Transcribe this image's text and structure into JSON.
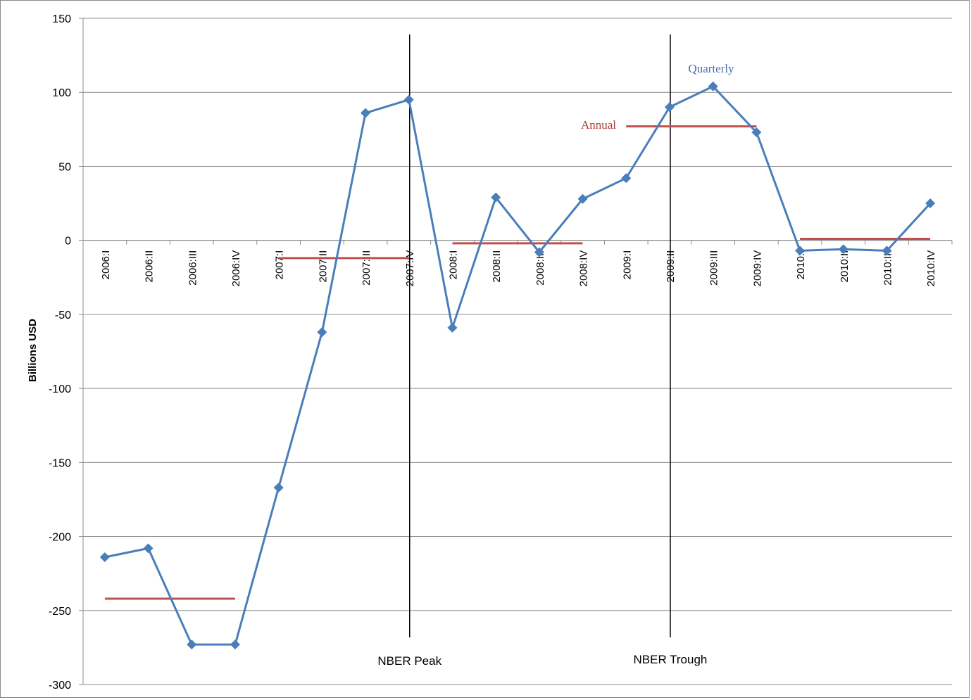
{
  "chart_data": {
    "type": "line",
    "title": "",
    "xlabel": "",
    "ylabel": "Billions USD",
    "ylim": [
      -300,
      150
    ],
    "y_ticks": [
      150,
      100,
      50,
      0,
      -50,
      -100,
      -150,
      -200,
      -250,
      -300
    ],
    "grid": "horizontal",
    "categories": [
      "2006:I",
      "2006:II",
      "2006:III",
      "2006:IV",
      "2007:I",
      "2007:II",
      "2007:III",
      "2007:IV",
      "2008:I",
      "2008:II",
      "2008:III",
      "2008:IV",
      "2009:I",
      "2009:II",
      "2009:III",
      "2009:IV",
      "2010:I",
      "2010:II",
      "2010:III",
      "2010:IV"
    ],
    "series": [
      {
        "name": "Quarterly",
        "color": "#4a7ebb",
        "marker": "diamond",
        "values": [
          -214,
          -208,
          -273,
          -273,
          -167,
          -62,
          86,
          95,
          -59,
          29,
          -8,
          28,
          42,
          90,
          104,
          73,
          -7,
          -6,
          -7,
          25
        ]
      },
      {
        "name": "Annual",
        "color": "#c0504d",
        "segments": [
          {
            "from": "2006:I",
            "to": "2006:IV",
            "value": -242
          },
          {
            "from": "2007:I",
            "to": "2007:IV",
            "value": -12
          },
          {
            "from": "2008:I",
            "to": "2008:IV",
            "value": -2
          },
          {
            "from": "2009:I",
            "to": "2009:IV",
            "value": 77
          },
          {
            "from": "2010:I",
            "to": "2010:IV",
            "value": 1
          }
        ]
      }
    ],
    "annotations": [
      {
        "text": "NBER Peak",
        "at": "2007:IV"
      },
      {
        "text": "NBER Trough",
        "at": "2009:II"
      }
    ]
  }
}
